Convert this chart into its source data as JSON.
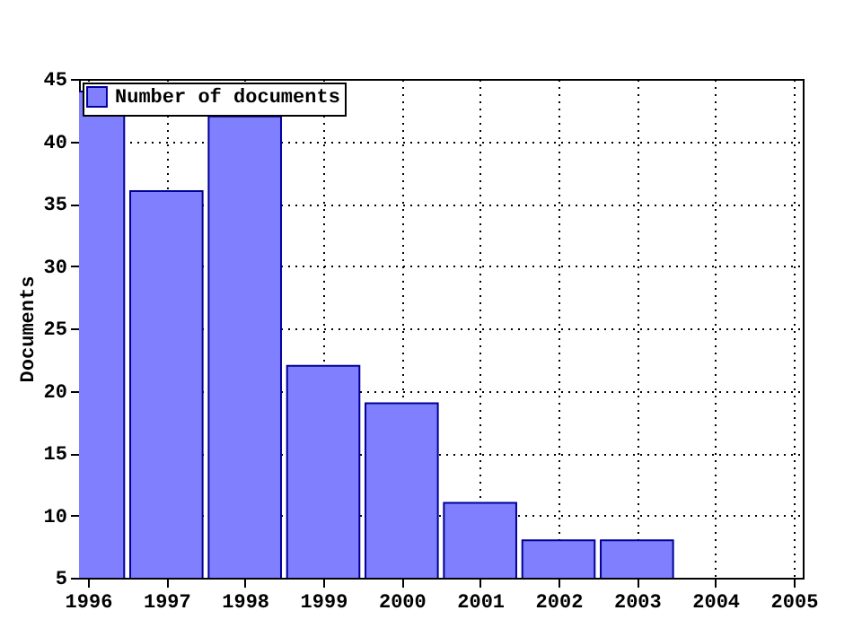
{
  "chart_data": {
    "type": "bar",
    "ylabel": "Documents",
    "x": [
      1996,
      1997,
      1998,
      1999,
      2000,
      2001,
      2002,
      2003
    ],
    "series": [
      {
        "name": "Number of documents",
        "color": "#8080ff",
        "values": [
          44,
          36,
          42,
          22,
          19,
          11,
          8,
          8
        ]
      }
    ],
    "xlim": [
      1996,
      2005
    ],
    "xticks": [
      1996,
      1997,
      1998,
      1999,
      2000,
      2001,
      2002,
      2003,
      2004,
      2005
    ],
    "ylim": [
      5,
      45
    ],
    "yticks": [
      5,
      10,
      15,
      20,
      25,
      30,
      35,
      40,
      45
    ],
    "grid": true,
    "legend": "top left"
  }
}
